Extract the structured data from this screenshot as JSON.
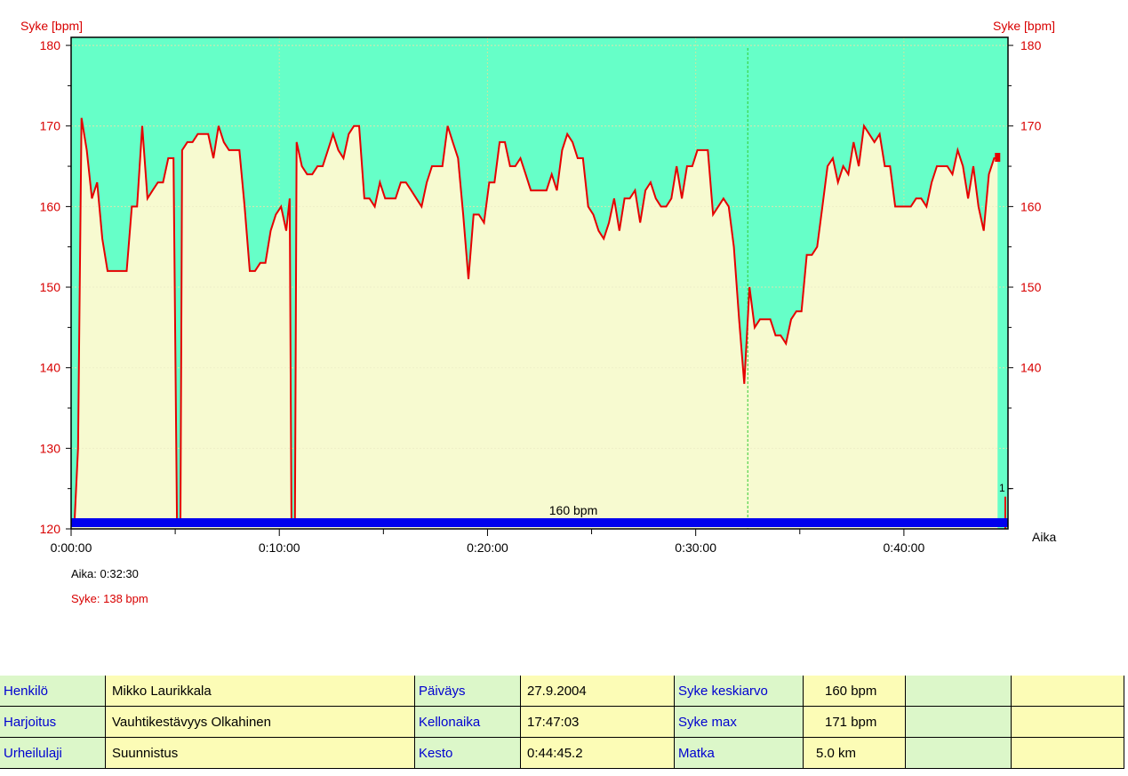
{
  "chart_data": {
    "type": "area",
    "ylabel_left": "Syke [bpm]",
    "ylabel_right": "Syke [bpm]",
    "xlabel": "Aika",
    "ylim": [
      120,
      181
    ],
    "y_ticks": [
      "120",
      "130",
      "140",
      "150",
      "160",
      "170",
      "180"
    ],
    "y_ticks_right": [
      "140",
      "150",
      "160",
      "170",
      "180"
    ],
    "xlim_seconds": [
      0,
      2700
    ],
    "x_ticks": [
      "0:00:00",
      "0:10:00",
      "0:20:00",
      "0:30:00",
      "0:40:00"
    ],
    "average_label": "160 bpm",
    "right_marker_label": "1",
    "cursor_time_seconds": 1950,
    "series": [
      {
        "name": "Syke",
        "points": [
          [
            0,
            121
          ],
          [
            10,
            121
          ],
          [
            20,
            130
          ],
          [
            30,
            171
          ],
          [
            45,
            167
          ],
          [
            60,
            161
          ],
          [
            75,
            163
          ],
          [
            90,
            156
          ],
          [
            105,
            152
          ],
          [
            125,
            152
          ],
          [
            145,
            152
          ],
          [
            160,
            152
          ],
          [
            175,
            160
          ],
          [
            190,
            160
          ],
          [
            205,
            170
          ],
          [
            220,
            161
          ],
          [
            235,
            162
          ],
          [
            250,
            163
          ],
          [
            265,
            163
          ],
          [
            280,
            166
          ],
          [
            295,
            166
          ],
          [
            305,
            121
          ],
          [
            315,
            121
          ],
          [
            320,
            167
          ],
          [
            335,
            168
          ],
          [
            350,
            168
          ],
          [
            365,
            169
          ],
          [
            380,
            169
          ],
          [
            395,
            169
          ],
          [
            410,
            166
          ],
          [
            425,
            170
          ],
          [
            440,
            168
          ],
          [
            455,
            167
          ],
          [
            470,
            167
          ],
          [
            485,
            167
          ],
          [
            500,
            160
          ],
          [
            515,
            152
          ],
          [
            530,
            152
          ],
          [
            545,
            153
          ],
          [
            560,
            153
          ],
          [
            575,
            157
          ],
          [
            590,
            159
          ],
          [
            605,
            160
          ],
          [
            620,
            157
          ],
          [
            630,
            161
          ],
          [
            635,
            121
          ],
          [
            645,
            121
          ],
          [
            650,
            168
          ],
          [
            665,
            165
          ],
          [
            680,
            164
          ],
          [
            695,
            164
          ],
          [
            710,
            165
          ],
          [
            725,
            165
          ],
          [
            740,
            167
          ],
          [
            755,
            169
          ],
          [
            770,
            167
          ],
          [
            785,
            166
          ],
          [
            800,
            169
          ],
          [
            815,
            170
          ],
          [
            830,
            170
          ],
          [
            845,
            161
          ],
          [
            860,
            161
          ],
          [
            875,
            160
          ],
          [
            890,
            163
          ],
          [
            905,
            161
          ],
          [
            920,
            161
          ],
          [
            935,
            161
          ],
          [
            950,
            163
          ],
          [
            965,
            163
          ],
          [
            980,
            162
          ],
          [
            995,
            161
          ],
          [
            1010,
            160
          ],
          [
            1025,
            163
          ],
          [
            1040,
            165
          ],
          [
            1055,
            165
          ],
          [
            1070,
            165
          ],
          [
            1085,
            170
          ],
          [
            1100,
            168
          ],
          [
            1115,
            166
          ],
          [
            1130,
            159
          ],
          [
            1145,
            151
          ],
          [
            1160,
            159
          ],
          [
            1175,
            159
          ],
          [
            1190,
            158
          ],
          [
            1205,
            163
          ],
          [
            1220,
            163
          ],
          [
            1235,
            168
          ],
          [
            1250,
            168
          ],
          [
            1265,
            165
          ],
          [
            1280,
            165
          ],
          [
            1295,
            166
          ],
          [
            1310,
            164
          ],
          [
            1325,
            162
          ],
          [
            1340,
            162
          ],
          [
            1355,
            162
          ],
          [
            1370,
            162
          ],
          [
            1385,
            164
          ],
          [
            1400,
            162
          ],
          [
            1415,
            167
          ],
          [
            1430,
            169
          ],
          [
            1445,
            168
          ],
          [
            1460,
            166
          ],
          [
            1475,
            166
          ],
          [
            1490,
            160
          ],
          [
            1505,
            159
          ],
          [
            1520,
            157
          ],
          [
            1535,
            156
          ],
          [
            1550,
            158
          ],
          [
            1565,
            161
          ],
          [
            1580,
            157
          ],
          [
            1595,
            161
          ],
          [
            1610,
            161
          ],
          [
            1625,
            162
          ],
          [
            1640,
            158
          ],
          [
            1655,
            162
          ],
          [
            1670,
            163
          ],
          [
            1685,
            161
          ],
          [
            1700,
            160
          ],
          [
            1715,
            160
          ],
          [
            1730,
            161
          ],
          [
            1745,
            165
          ],
          [
            1760,
            161
          ],
          [
            1775,
            165
          ],
          [
            1790,
            165
          ],
          [
            1805,
            167
          ],
          [
            1820,
            167
          ],
          [
            1835,
            167
          ],
          [
            1850,
            159
          ],
          [
            1865,
            160
          ],
          [
            1880,
            161
          ],
          [
            1895,
            160
          ],
          [
            1910,
            155
          ],
          [
            1925,
            146
          ],
          [
            1940,
            138
          ],
          [
            1955,
            150
          ],
          [
            1970,
            145
          ],
          [
            1985,
            146
          ],
          [
            2000,
            146
          ],
          [
            2015,
            146
          ],
          [
            2030,
            144
          ],
          [
            2045,
            144
          ],
          [
            2060,
            143
          ],
          [
            2075,
            146
          ],
          [
            2090,
            147
          ],
          [
            2105,
            147
          ],
          [
            2120,
            154
          ],
          [
            2135,
            154
          ],
          [
            2150,
            155
          ],
          [
            2165,
            160
          ],
          [
            2180,
            165
          ],
          [
            2195,
            166
          ],
          [
            2210,
            163
          ],
          [
            2225,
            165
          ],
          [
            2240,
            164
          ],
          [
            2255,
            168
          ],
          [
            2270,
            165
          ],
          [
            2285,
            170
          ],
          [
            2300,
            169
          ],
          [
            2315,
            168
          ],
          [
            2330,
            169
          ],
          [
            2345,
            165
          ],
          [
            2360,
            165
          ],
          [
            2375,
            160
          ],
          [
            2390,
            160
          ],
          [
            2405,
            160
          ],
          [
            2420,
            160
          ],
          [
            2435,
            161
          ],
          [
            2450,
            161
          ],
          [
            2465,
            160
          ],
          [
            2480,
            163
          ],
          [
            2495,
            165
          ],
          [
            2510,
            165
          ],
          [
            2525,
            165
          ],
          [
            2540,
            164
          ],
          [
            2555,
            167
          ],
          [
            2570,
            165
          ],
          [
            2585,
            161
          ],
          [
            2600,
            165
          ],
          [
            2615,
            160
          ],
          [
            2630,
            157
          ],
          [
            2645,
            164
          ],
          [
            2660,
            166
          ],
          [
            2670,
            166
          ]
        ]
      }
    ],
    "colors": {
      "above_fill": "#66ffc8",
      "below_fill": "#f7fad0",
      "line": "#e60000",
      "average_bar": "#0000ee",
      "axis_text": "#d80000"
    }
  },
  "cursor": {
    "time_text": "Aika: 0:32:30",
    "hr_text": "Syke: 138 bpm"
  },
  "summary": {
    "rows": [
      [
        "Henkilö",
        "Mikko Laurikkala",
        "Päiväys",
        "27.9.2004",
        "Syke keskiarvo",
        "160 bpm"
      ],
      [
        "Harjoitus",
        "Vauhtikestävyys Olkahinen",
        "Kellonaika",
        "17:47:03",
        "Syke max",
        "171 bpm"
      ],
      [
        "Urheilulaji",
        "Suunnistus",
        "Kesto",
        "0:44:45.2",
        "Matka",
        "5.0 km"
      ]
    ]
  }
}
